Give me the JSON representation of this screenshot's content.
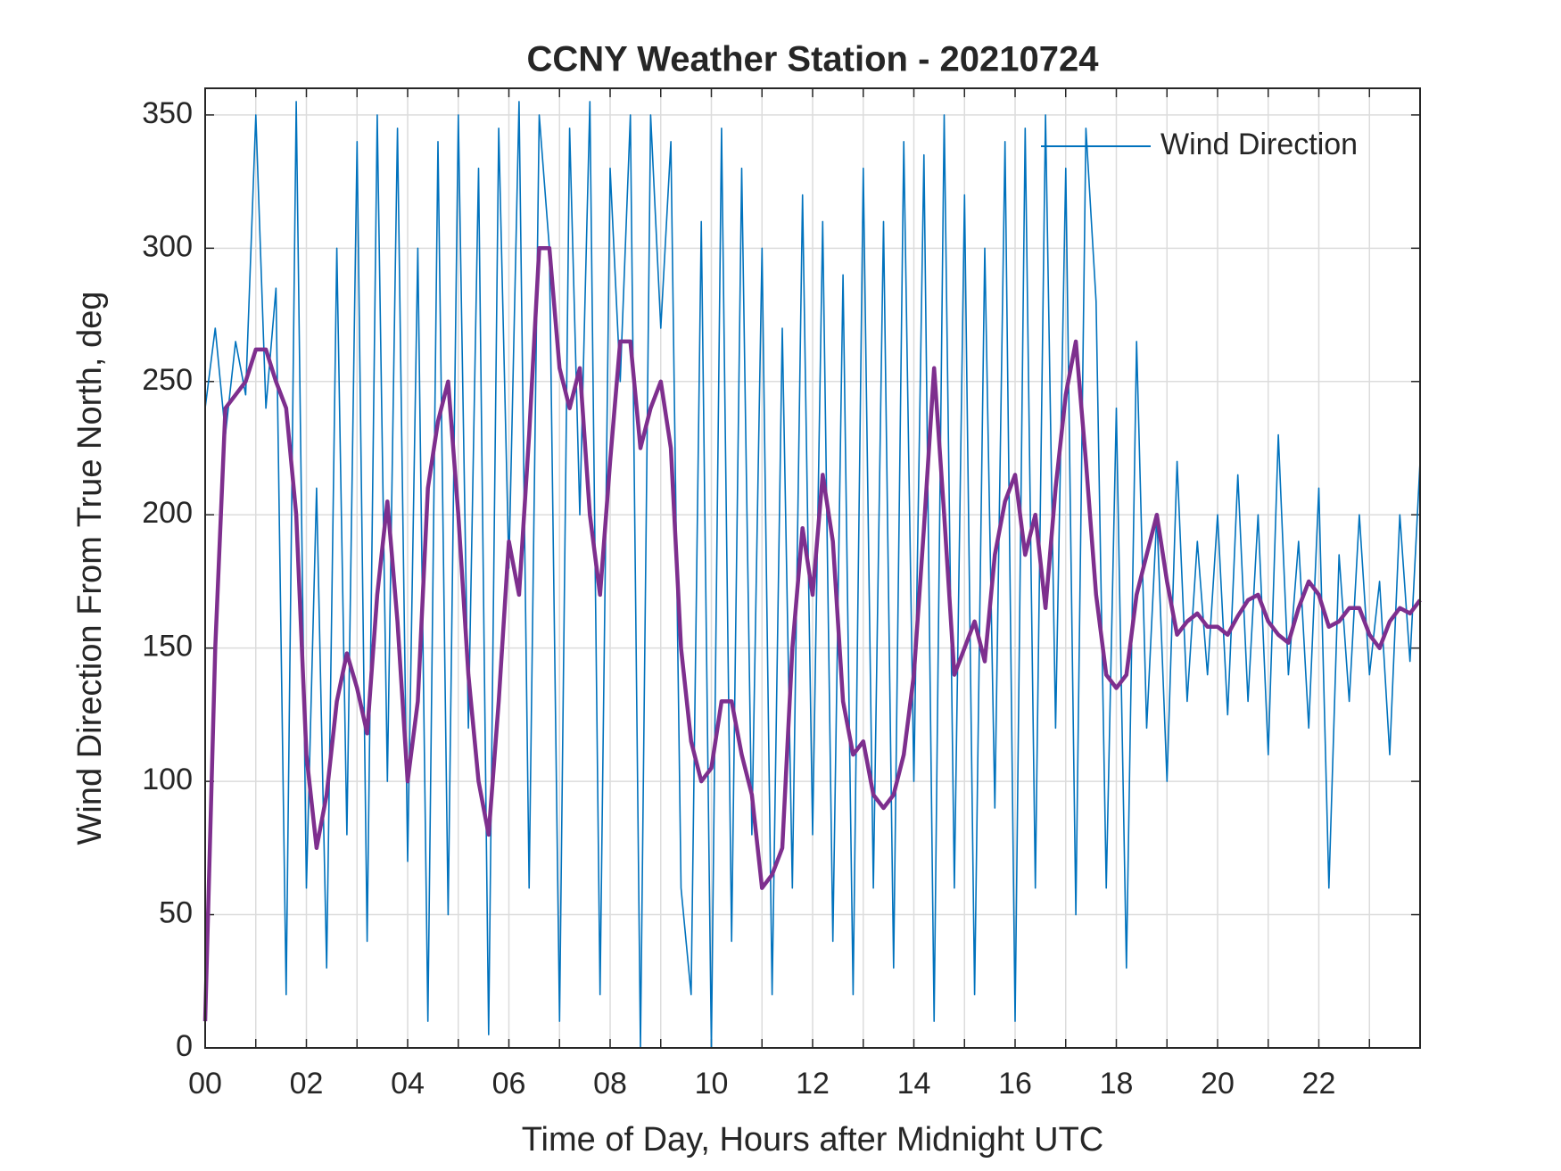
{
  "chart_data": {
    "type": "line",
    "title": "CCNY Weather Station - 20210724",
    "xlabel": "Time of Day, Hours after Midnight UTC",
    "ylabel": "Wind Direction From True North, deg",
    "x": [
      0,
      0.2,
      0.4,
      0.6,
      0.8,
      1,
      1.2,
      1.4,
      1.6,
      1.8,
      2,
      2.2,
      2.4,
      2.6,
      2.8,
      3,
      3.2,
      3.4,
      3.6,
      3.8,
      4,
      4.2,
      4.4,
      4.6,
      4.8,
      5,
      5.2,
      5.4,
      5.6,
      5.8,
      6,
      6.2,
      6.4,
      6.6,
      6.8,
      7,
      7.2,
      7.4,
      7.6,
      7.8,
      8,
      8.2,
      8.4,
      8.6,
      8.8,
      9,
      9.2,
      9.4,
      9.6,
      9.8,
      10,
      10.2,
      10.4,
      10.6,
      10.8,
      11,
      11.2,
      11.4,
      11.6,
      11.8,
      12,
      12.2,
      12.4,
      12.6,
      12.8,
      13,
      13.2,
      13.4,
      13.6,
      13.8,
      14,
      14.2,
      14.4,
      14.6,
      14.8,
      15,
      15.2,
      15.4,
      15.6,
      15.8,
      16,
      16.2,
      16.4,
      16.6,
      16.8,
      17,
      17.2,
      17.4,
      17.6,
      17.8,
      18,
      18.2,
      18.4,
      18.6,
      18.8,
      19,
      19.2,
      19.4,
      19.6,
      19.8,
      20,
      20.2,
      20.4,
      20.6,
      20.8,
      21,
      21.2,
      21.4,
      21.6,
      21.8,
      22,
      22.2,
      22.4,
      22.6,
      22.8,
      23,
      23.2,
      23.4,
      23.6,
      23.8,
      24
    ],
    "series": [
      {
        "name": "Wind Direction",
        "color": "#0072bd",
        "width": 1.6,
        "values": [
          240,
          270,
          230,
          265,
          245,
          350,
          240,
          285,
          20,
          355,
          60,
          210,
          30,
          300,
          80,
          340,
          40,
          350,
          100,
          345,
          70,
          300,
          10,
          340,
          50,
          350,
          120,
          330,
          5,
          345,
          180,
          355,
          60,
          350,
          300,
          10,
          345,
          200,
          355,
          20,
          330,
          250,
          350,
          0,
          350,
          270,
          340,
          60,
          20,
          310,
          0,
          345,
          40,
          330,
          80,
          300,
          20,
          270,
          60,
          320,
          80,
          310,
          40,
          290,
          20,
          330,
          60,
          310,
          30,
          340,
          100,
          335,
          10,
          350,
          60,
          320,
          20,
          300,
          90,
          340,
          10,
          345,
          60,
          350,
          120,
          330,
          50,
          345,
          280,
          60,
          240,
          30,
          265,
          120,
          200,
          100,
          220,
          130,
          190,
          140,
          200,
          125,
          215,
          130,
          200,
          110,
          230,
          140,
          190,
          120,
          210,
          60,
          185,
          130,
          200,
          140,
          175,
          110,
          200,
          145,
          220
        ]
      },
      {
        "color": "#7e2f8e",
        "width": 4.5,
        "values": [
          10,
          150,
          240,
          245,
          250,
          262,
          262,
          250,
          240,
          200,
          110,
          75,
          95,
          130,
          148,
          135,
          118,
          170,
          205,
          160,
          100,
          130,
          210,
          235,
          250,
          200,
          140,
          100,
          80,
          130,
          190,
          170,
          230,
          300,
          300,
          255,
          240,
          255,
          200,
          170,
          220,
          265,
          265,
          225,
          240,
          250,
          225,
          150,
          115,
          100,
          105,
          130,
          130,
          110,
          95,
          60,
          65,
          75,
          150,
          195,
          170,
          215,
          190,
          130,
          110,
          115,
          95,
          90,
          95,
          110,
          140,
          195,
          255,
          200,
          140,
          150,
          160,
          145,
          185,
          205,
          215,
          185,
          200,
          165,
          210,
          245,
          265,
          220,
          170,
          140,
          135,
          140,
          170,
          185,
          200,
          175,
          155,
          160,
          163,
          158,
          158,
          155,
          162,
          168,
          170,
          160,
          155,
          152,
          165,
          175,
          170,
          158,
          160,
          165,
          165,
          155,
          150,
          160,
          165,
          163,
          168
        ]
      }
    ],
    "xlim": [
      0,
      24
    ],
    "xticks": [
      {
        "value": 0,
        "label": "00"
      },
      {
        "value": 2,
        "label": "02"
      },
      {
        "value": 4,
        "label": "04"
      },
      {
        "value": 6,
        "label": "06"
      },
      {
        "value": 8,
        "label": "08"
      },
      {
        "value": 10,
        "label": "10"
      },
      {
        "value": 12,
        "label": "12"
      },
      {
        "value": 14,
        "label": "14"
      },
      {
        "value": 16,
        "label": "16"
      },
      {
        "value": 18,
        "label": "18"
      },
      {
        "value": 20,
        "label": "20"
      },
      {
        "value": 22,
        "label": "22"
      }
    ],
    "xminor_ticks": [
      1,
      3,
      5,
      7,
      9,
      11,
      13,
      15,
      17,
      19,
      21,
      23
    ],
    "ylim": [
      0,
      360
    ],
    "yticks": [
      0,
      50,
      100,
      150,
      200,
      250,
      300,
      350
    ],
    "grid": true,
    "legend": "upper right"
  }
}
